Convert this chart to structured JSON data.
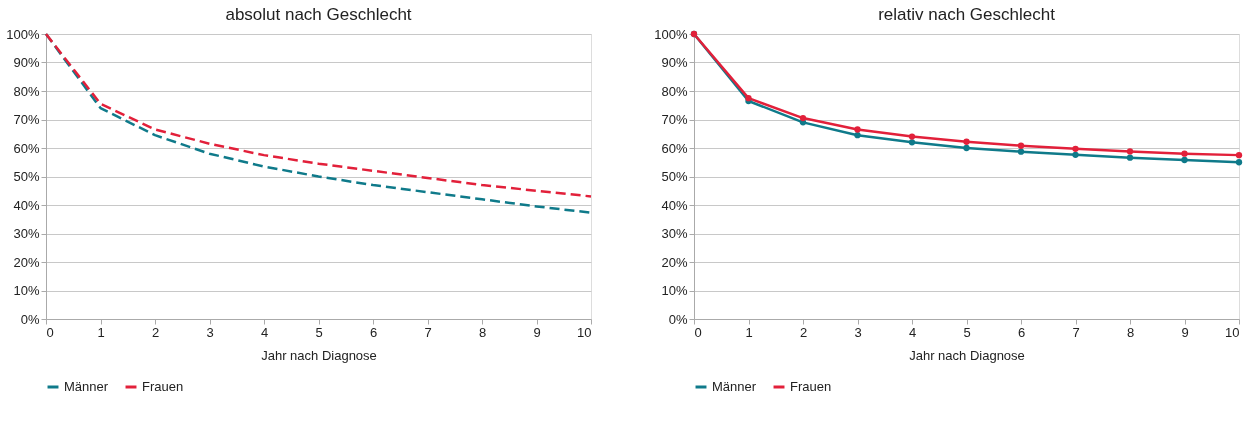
{
  "chart_data": [
    {
      "type": "line",
      "title": "absolut nach Geschlecht",
      "xlabel": "Jahr nach Diagnose",
      "x": [
        0,
        1,
        2,
        3,
        4,
        5,
        6,
        7,
        8,
        9,
        10
      ],
      "xlim": [
        0,
        10
      ],
      "xticks": [
        0,
        1,
        2,
        3,
        4,
        5,
        6,
        7,
        8,
        9,
        10
      ],
      "ylim": [
        0,
        100
      ],
      "yticks": [
        {
          "value": 0,
          "label": "0%"
        },
        {
          "value": 10,
          "label": "10%"
        },
        {
          "value": 20,
          "label": "20%"
        },
        {
          "value": 30,
          "label": "30%"
        },
        {
          "value": 40,
          "label": "40%"
        },
        {
          "value": 50,
          "label": "50%"
        },
        {
          "value": 60,
          "label": "60%"
        },
        {
          "value": 70,
          "label": "70%"
        },
        {
          "value": 80,
          "label": "80%"
        },
        {
          "value": 90,
          "label": "90%"
        },
        {
          "value": 100,
          "label": "100%"
        }
      ],
      "grid": "y",
      "legend": "bottom",
      "line_style": "dashed",
      "marker": "none",
      "series": [
        {
          "name": "Männer",
          "color": "#0f7a8a",
          "values": [
            100,
            74,
            64.5,
            58,
            53.5,
            50,
            47,
            44.5,
            42,
            39.5,
            37.3
          ]
        },
        {
          "name": "Frauen",
          "color": "#e2203a",
          "values": [
            100,
            75.5,
            66.5,
            61.5,
            57.5,
            54.5,
            52,
            49.5,
            47,
            45,
            43
          ]
        }
      ]
    },
    {
      "type": "line",
      "title": "relativ nach Geschlecht",
      "xlabel": "Jahr nach Diagnose",
      "x": [
        0,
        1,
        2,
        3,
        4,
        5,
        6,
        7,
        8,
        9,
        10
      ],
      "xlim": [
        0,
        10
      ],
      "xticks": [
        0,
        1,
        2,
        3,
        4,
        5,
        6,
        7,
        8,
        9,
        10
      ],
      "ylim": [
        0,
        100
      ],
      "yticks": [
        {
          "value": 0,
          "label": "0%"
        },
        {
          "value": 10,
          "label": "10%"
        },
        {
          "value": 20,
          "label": "20%"
        },
        {
          "value": 30,
          "label": "30%"
        },
        {
          "value": 40,
          "label": "40%"
        },
        {
          "value": 50,
          "label": "50%"
        },
        {
          "value": 60,
          "label": "60%"
        },
        {
          "value": 70,
          "label": "70%"
        },
        {
          "value": 80,
          "label": "80%"
        },
        {
          "value": 90,
          "label": "90%"
        },
        {
          "value": 100,
          "label": "100%"
        }
      ],
      "grid": "y",
      "legend": "bottom",
      "line_style": "solid",
      "marker": "circle",
      "series": [
        {
          "name": "Männer",
          "color": "#0f7a8a",
          "values": [
            100,
            76.5,
            69,
            64.5,
            62,
            60,
            58.7,
            57.6,
            56.6,
            55.8,
            55
          ]
        },
        {
          "name": "Frauen",
          "color": "#e2203a",
          "values": [
            100,
            77.5,
            70.5,
            66.5,
            64,
            62.2,
            60.8,
            59.7,
            58.8,
            58,
            57.5
          ]
        }
      ]
    }
  ]
}
